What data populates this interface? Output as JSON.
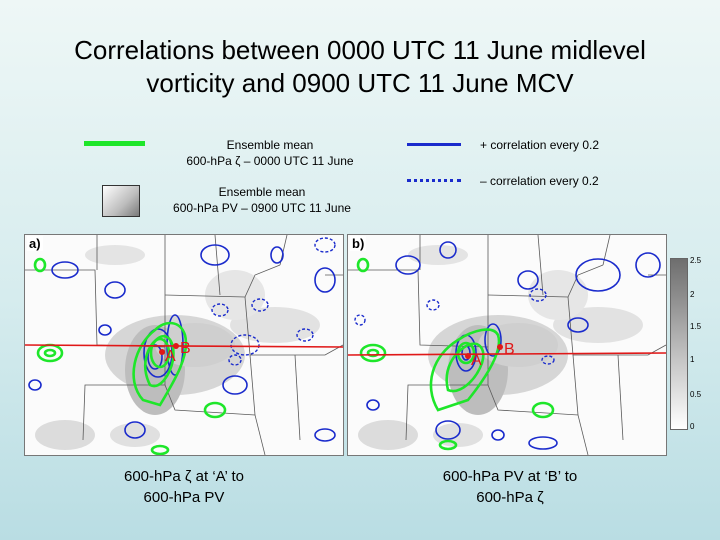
{
  "title": {
    "line1": "Correlations between 0000 UTC 11 June midlevel",
    "line2": "vorticity and 0900 UTC 11 June MCV"
  },
  "legend": {
    "green": {
      "line1": "Ensemble mean",
      "line2": "600-hPa ζ – 0000 UTC 11 June",
      "color": "#1ee62a"
    },
    "shade": {
      "line1": "Ensemble mean",
      "line2": "600-hPa PV – 0900 UTC 11 June"
    },
    "pos": {
      "label": "+ correlation every 0.2",
      "color": "#1a2bcc"
    },
    "neg": {
      "label": "– correlation every 0.2",
      "color": "#1a2bcc"
    }
  },
  "panels": [
    {
      "tag": "a)",
      "point_a": "A",
      "point_b": "B"
    },
    {
      "tag": "b)",
      "point_a": "A",
      "point_b": "B"
    }
  ],
  "colorbar": {
    "ticks": [
      "2.5",
      "2",
      "1.5",
      "1",
      "0.5",
      "0"
    ]
  },
  "captions": {
    "a": {
      "line1": "600-hPa ζ at ‘A’ to",
      "line2": "600-hPa PV"
    },
    "b": {
      "line1": "600-hPa PV at ‘B’ to",
      "line2": "600-hPa ζ"
    }
  },
  "colors": {
    "green": "#1ee62a",
    "blue": "#1a2bcc",
    "red": "#e01818"
  }
}
